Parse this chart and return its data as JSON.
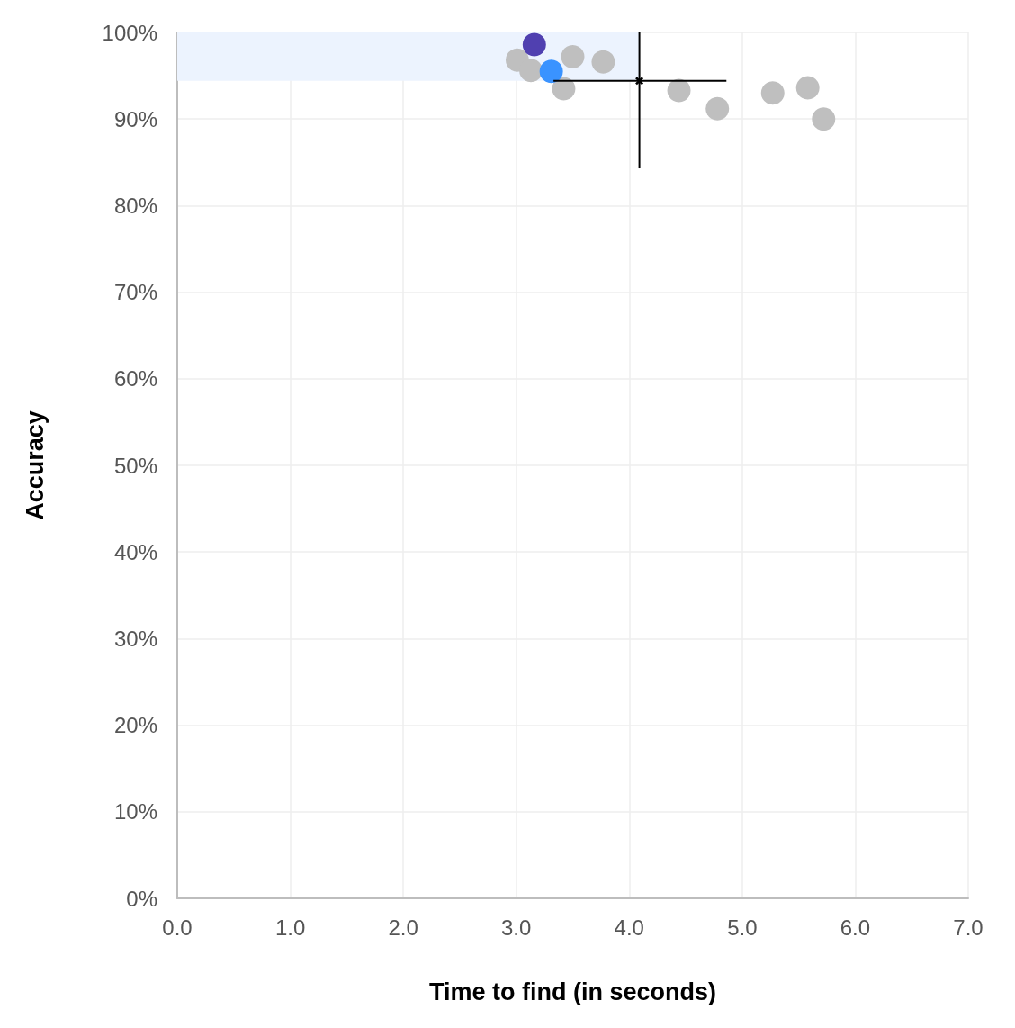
{
  "chart_data": {
    "type": "scatter",
    "xlabel": "Time to find (in seconds)",
    "ylabel": "Accuracy",
    "xlim": [
      0,
      7
    ],
    "xticks": [
      {
        "value": 0,
        "label": "0.0"
      },
      {
        "value": 1,
        "label": "1.0"
      },
      {
        "value": 2,
        "label": "2.0"
      },
      {
        "value": 3,
        "label": "3.0"
      },
      {
        "value": 4,
        "label": "4.0"
      },
      {
        "value": 5,
        "label": "5.0"
      },
      {
        "value": 6,
        "label": "6.0"
      },
      {
        "value": 7,
        "label": "7.0"
      }
    ],
    "ylim": [
      0,
      100
    ],
    "yticks": [
      {
        "value": 0,
        "label": "0%"
      },
      {
        "value": 10,
        "label": "10%"
      },
      {
        "value": 20,
        "label": "20%"
      },
      {
        "value": 30,
        "label": "30%"
      },
      {
        "value": 40,
        "label": "40%"
      },
      {
        "value": 50,
        "label": "50%"
      },
      {
        "value": 60,
        "label": "60%"
      },
      {
        "value": 70,
        "label": "70%"
      },
      {
        "value": 80,
        "label": "80%"
      },
      {
        "value": 90,
        "label": "90%"
      },
      {
        "value": 100,
        "label": "100%"
      }
    ],
    "grid": true,
    "marker": "circle",
    "bands": [
      {
        "axis": "y",
        "from": 94.4,
        "to": 100,
        "color": "#ecf3fe"
      }
    ],
    "series": [
      {
        "color": "#bfbfbf",
        "x": [
          3.01,
          3.13,
          3.5,
          3.77,
          3.42,
          4.44,
          4.78,
          5.27,
          5.58,
          5.72
        ],
        "values": [
          96.8,
          95.6,
          97.2,
          96.6,
          93.5,
          93.3,
          91.2,
          93.0,
          93.6,
          90.0
        ]
      },
      {
        "color": "#5040b0",
        "x": [
          3.16
        ],
        "values": [
          98.6
        ]
      },
      {
        "color": "#3a93ff",
        "x": [
          3.31
        ],
        "values": [
          95.5
        ]
      },
      {
        "color": "#000000",
        "marker": "cross",
        "x": [
          4.09
        ],
        "values": [
          94.4
        ],
        "errors": [
          [
            84.3,
            100
          ]
        ],
        "xerrors": [
          [
            3.33,
            4.86
          ]
        ]
      }
    ]
  }
}
